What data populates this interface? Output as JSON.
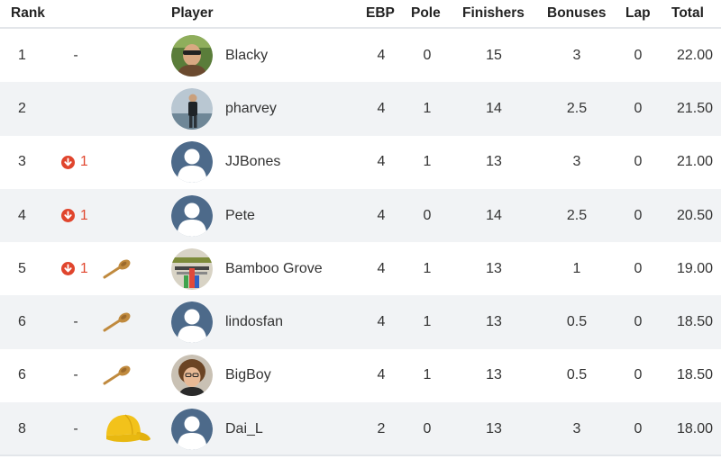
{
  "header": {
    "rank": "Rank",
    "player": "Player",
    "ebp": "EBP",
    "pole": "Pole",
    "finishers": "Finishers",
    "bonuses": "Bonuses",
    "lap": "Lap",
    "total": "Total"
  },
  "colors": {
    "down_arrow": "#e0452d",
    "alt_row": "#f1f3f5",
    "default_avatar": "#4d6a8a",
    "spoon": "#c08a3e",
    "cap": "#f2c21b"
  },
  "rows": [
    {
      "rank": "1",
      "movement": "-",
      "movement_type": "none",
      "badge": "",
      "avatar": "photo-blacky",
      "name": "Blacky",
      "ebp": "4",
      "pole": "0",
      "finishers": "15",
      "bonuses": "3",
      "lap": "0",
      "total": "22.00"
    },
    {
      "rank": "2",
      "movement": "",
      "movement_type": "none",
      "badge": "",
      "avatar": "photo-pharvey",
      "name": "pharvey",
      "ebp": "4",
      "pole": "1",
      "finishers": "14",
      "bonuses": "2.5",
      "lap": "0",
      "total": "21.50"
    },
    {
      "rank": "3",
      "movement": "1",
      "movement_type": "down",
      "badge": "",
      "avatar": "default-user-icon",
      "name": "JJBones",
      "ebp": "4",
      "pole": "1",
      "finishers": "13",
      "bonuses": "3",
      "lap": "0",
      "total": "21.00"
    },
    {
      "rank": "4",
      "movement": "1",
      "movement_type": "down",
      "badge": "",
      "avatar": "default-user-icon",
      "name": "Pete",
      "ebp": "4",
      "pole": "0",
      "finishers": "14",
      "bonuses": "2.5",
      "lap": "0",
      "total": "20.50"
    },
    {
      "rank": "5",
      "movement": "1",
      "movement_type": "down",
      "badge": "wooden-spoon-icon",
      "avatar": "photo-bamboo-grove",
      "name": "Bamboo Grove",
      "ebp": "4",
      "pole": "1",
      "finishers": "13",
      "bonuses": "1",
      "lap": "0",
      "total": "19.00"
    },
    {
      "rank": "6",
      "movement": "-",
      "movement_type": "none",
      "badge": "wooden-spoon-icon",
      "avatar": "default-user-icon",
      "name": "lindosfan",
      "ebp": "4",
      "pole": "1",
      "finishers": "13",
      "bonuses": "0.5",
      "lap": "0",
      "total": "18.50"
    },
    {
      "rank": "6",
      "movement": "-",
      "movement_type": "none",
      "badge": "wooden-spoon-icon",
      "avatar": "photo-bigboy",
      "name": "BigBoy",
      "ebp": "4",
      "pole": "1",
      "finishers": "13",
      "bonuses": "0.5",
      "lap": "0",
      "total": "18.50"
    },
    {
      "rank": "8",
      "movement": "-",
      "movement_type": "none",
      "badge": "yellow-cap-icon",
      "avatar": "default-user-icon",
      "name": "Dai_L",
      "ebp": "2",
      "pole": "0",
      "finishers": "13",
      "bonuses": "3",
      "lap": "0",
      "total": "18.00"
    }
  ]
}
